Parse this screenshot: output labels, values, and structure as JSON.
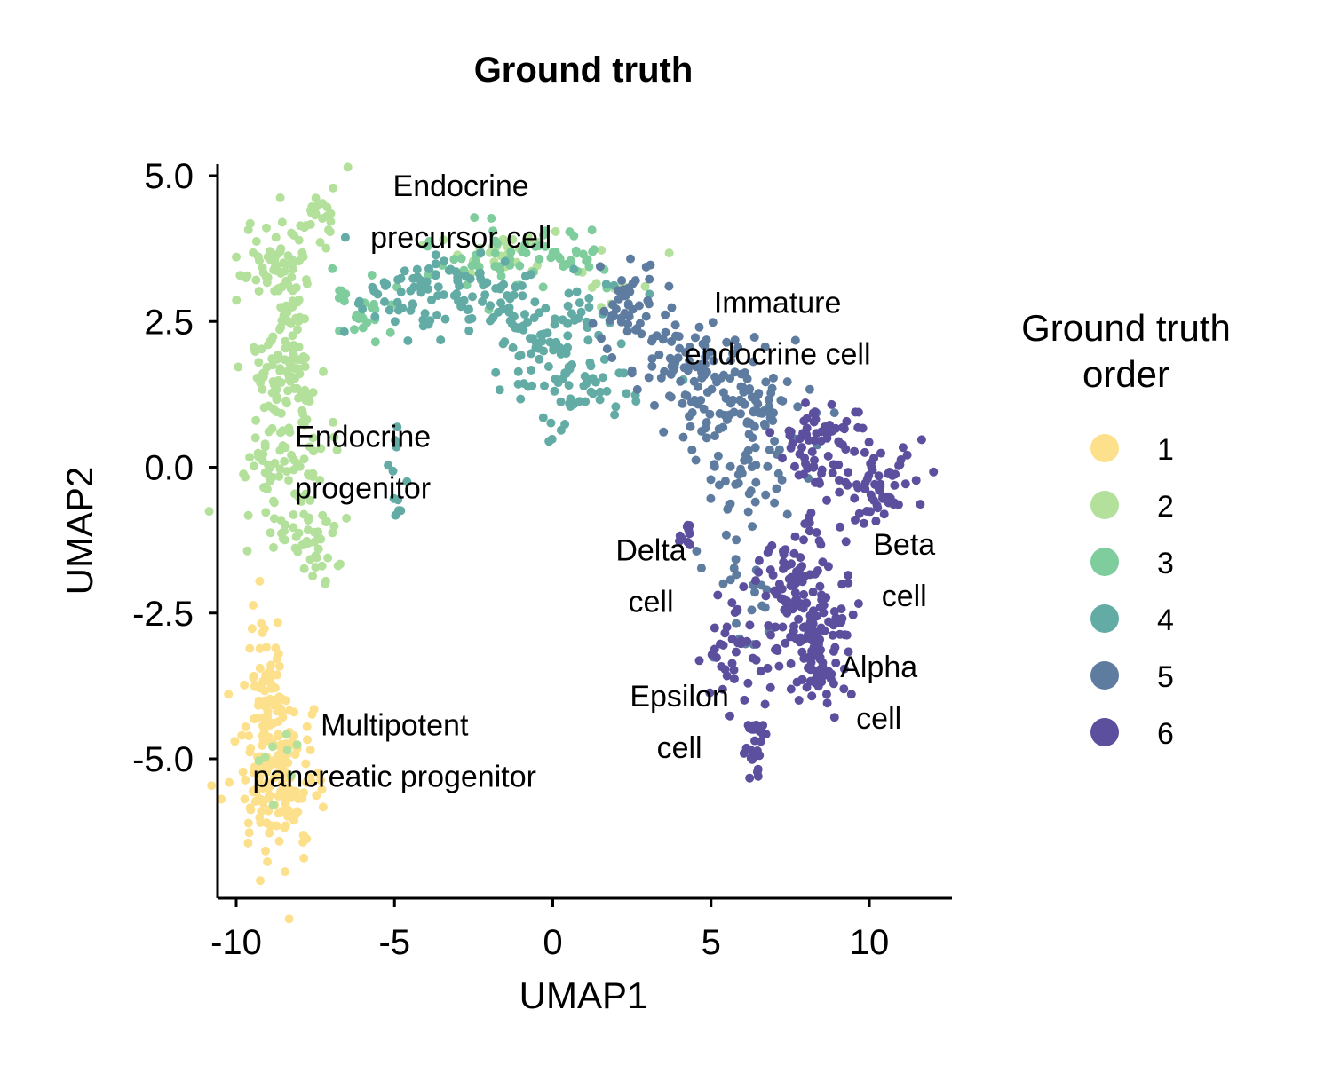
{
  "chart_data": {
    "type": "scatter",
    "title": "Ground truth",
    "xlabel": "UMAP1",
    "ylabel": "UMAP2",
    "xlim": [
      -10.6,
      12.6
    ],
    "ylim": [
      -7.3,
      5.2
    ],
    "xticks": [
      -10,
      -5,
      0,
      5,
      10
    ],
    "xtick_labels": [
      "-10",
      "-5",
      "0",
      "5",
      "10"
    ],
    "yticks": [
      5.0,
      2.5,
      0.0,
      -2.5,
      -5.0
    ],
    "ytick_labels": [
      "5.0",
      "2.5",
      "0.0",
      "-2.5",
      "-5.0"
    ],
    "grid": false,
    "legend": {
      "title_lines": [
        "Ground truth",
        "order"
      ],
      "position": "right",
      "entries": [
        {
          "label": "1",
          "color": "#fde08b"
        },
        {
          "label": "2",
          "color": "#b3e19b"
        },
        {
          "label": "3",
          "color": "#7fcc9c"
        },
        {
          "label": "4",
          "color": "#63aba5"
        },
        {
          "label": "5",
          "color": "#5e7ba0"
        },
        {
          "label": "6",
          "color": "#5b4f9e"
        }
      ]
    },
    "annotations": [
      {
        "lines": [
          "Endocrine",
          "precursor cell"
        ],
        "x": -2.9,
        "y": 4.65
      },
      {
        "lines": [
          "Immature",
          "endocrine cell"
        ],
        "x": 7.1,
        "y": 2.65
      },
      {
        "lines": [
          "Endocrine",
          "progenitor"
        ],
        "x": -6.0,
        "y": 0.35
      },
      {
        "lines": [
          "Delta",
          "cell"
        ],
        "x": 3.1,
        "y": -1.6
      },
      {
        "lines": [
          "Beta",
          "cell"
        ],
        "x": 11.1,
        "y": -1.5
      },
      {
        "lines": [
          "Alpha",
          "cell"
        ],
        "x": 10.3,
        "y": -3.6
      },
      {
        "lines": [
          "Epsilon",
          "cell"
        ],
        "x": 4.0,
        "y": -4.1
      },
      {
        "lines": [
          "Multipotent",
          "pancreatic progenitor"
        ],
        "x": -5.0,
        "y": -4.6
      }
    ],
    "series": [
      {
        "name": "1",
        "color": "#fde08b",
        "clusters": [
          {
            "cx": -9.0,
            "cy": -3.6,
            "sx": 0.35,
            "sy": 0.6,
            "n": 60
          },
          {
            "cx": -8.7,
            "cy": -5.4,
            "sx": 0.6,
            "sy": 0.65,
            "n": 170
          }
        ]
      },
      {
        "name": "2",
        "color": "#b3e19b",
        "clusters": [
          {
            "cx": -8.5,
            "cy": 3.4,
            "sx": 0.6,
            "sy": 0.45,
            "n": 70
          },
          {
            "cx": -7.3,
            "cy": 4.3,
            "sx": 0.35,
            "sy": 0.25,
            "n": 22
          },
          {
            "cx": -8.4,
            "cy": 1.7,
            "sx": 0.55,
            "sy": 0.6,
            "n": 90
          },
          {
            "cx": -8.5,
            "cy": 0.0,
            "sx": 0.7,
            "sy": 0.6,
            "n": 80
          },
          {
            "cx": -7.8,
            "cy": -1.3,
            "sx": 0.6,
            "sy": 0.35,
            "n": 40
          },
          {
            "cx": -1.5,
            "cy": 3.7,
            "sx": 1.2,
            "sy": 0.2,
            "n": 30
          },
          {
            "cx": 1.8,
            "cy": 3.2,
            "sx": 0.6,
            "sy": 0.25,
            "n": 10
          },
          {
            "cx": -8.6,
            "cy": -5.4,
            "sx": 0.4,
            "sy": 0.5,
            "n": 8
          }
        ]
      },
      {
        "name": "3",
        "color": "#7fcc9c",
        "clusters": [
          {
            "cx": -6.0,
            "cy": 2.7,
            "sx": 0.6,
            "sy": 0.4,
            "n": 25
          },
          {
            "cx": -1.5,
            "cy": 3.5,
            "sx": 1.6,
            "sy": 0.3,
            "n": 55
          },
          {
            "cx": 0.3,
            "cy": 3.6,
            "sx": 0.6,
            "sy": 0.2,
            "n": 15
          }
        ]
      },
      {
        "name": "4",
        "color": "#63aba5",
        "clusters": [
          {
            "cx": -4.0,
            "cy": 3.0,
            "sx": 1.3,
            "sy": 0.35,
            "n": 80
          },
          {
            "cx": -0.5,
            "cy": 2.6,
            "sx": 1.2,
            "sy": 0.45,
            "n": 90
          },
          {
            "cx": 0.8,
            "cy": 1.4,
            "sx": 1.2,
            "sy": 0.35,
            "n": 60
          },
          {
            "cx": -4.9,
            "cy": -0.1,
            "sx": 0.1,
            "sy": 0.4,
            "n": 12
          }
        ]
      },
      {
        "name": "5",
        "color": "#5e7ba0",
        "clusters": [
          {
            "cx": 2.5,
            "cy": 2.6,
            "sx": 0.6,
            "sy": 0.45,
            "n": 50
          },
          {
            "cx": 4.5,
            "cy": 1.6,
            "sx": 0.9,
            "sy": 0.45,
            "n": 90
          },
          {
            "cx": 6.6,
            "cy": 1.1,
            "sx": 0.8,
            "sy": 0.4,
            "n": 60
          },
          {
            "cx": 6.0,
            "cy": -0.1,
            "sx": 0.7,
            "sy": 0.6,
            "n": 50
          },
          {
            "cx": 6.2,
            "cy": -2.3,
            "sx": 0.6,
            "sy": 0.5,
            "n": 20
          }
        ]
      },
      {
        "name": "6",
        "color": "#5b4f9e",
        "clusters": [
          {
            "cx": 8.5,
            "cy": 0.4,
            "sx": 0.7,
            "sy": 0.4,
            "n": 70
          },
          {
            "cx": 10.4,
            "cy": -0.4,
            "sx": 0.6,
            "sy": 0.35,
            "n": 60
          },
          {
            "cx": 7.8,
            "cy": -2.1,
            "sx": 0.7,
            "sy": 0.6,
            "n": 120
          },
          {
            "cx": 8.4,
            "cy": -3.3,
            "sx": 0.45,
            "sy": 0.4,
            "n": 80
          },
          {
            "cx": 5.7,
            "cy": -3.2,
            "sx": 0.5,
            "sy": 0.5,
            "n": 35
          },
          {
            "cx": 6.4,
            "cy": -4.8,
            "sx": 0.2,
            "sy": 0.3,
            "n": 30
          },
          {
            "cx": 4.2,
            "cy": -1.2,
            "sx": 0.2,
            "sy": 0.12,
            "n": 10
          }
        ]
      }
    ]
  }
}
